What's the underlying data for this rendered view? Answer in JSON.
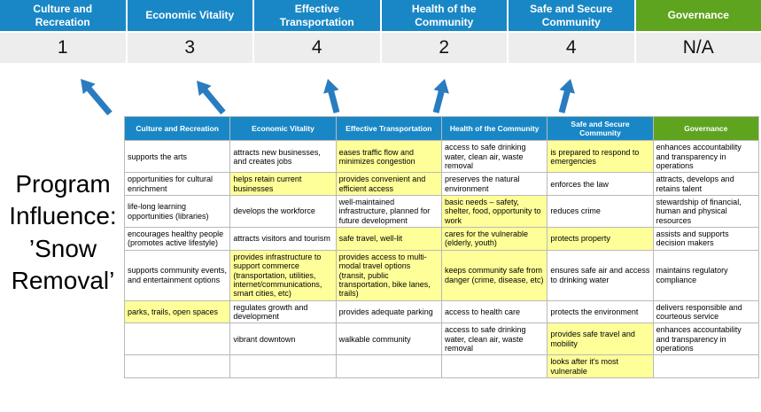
{
  "title": {
    "text": "Program\nInfluence:\n’Snow\nRemoval’"
  },
  "colors": {
    "pillar_blue": "#1987c6",
    "governance_green": "#5fa41f",
    "highlight_yellow": "#ffff99",
    "arrow_blue": "#2a7cc0",
    "score_band_gray": "#ededed"
  },
  "pillars": [
    {
      "label": "Culture and Recreation",
      "score": "1",
      "theme": "blue"
    },
    {
      "label": "Economic Vitality",
      "score": "3",
      "theme": "blue"
    },
    {
      "label": "Effective Transportation",
      "score": "4",
      "theme": "blue"
    },
    {
      "label": "Health of the Community",
      "score": "2",
      "theme": "blue"
    },
    {
      "label": "Safe and Secure Community",
      "score": "4",
      "theme": "blue"
    },
    {
      "label": "Governance",
      "score": "N/A",
      "theme": "green"
    }
  ],
  "matrix": {
    "rows": [
      [
        {
          "text": "supports the arts",
          "hl": false
        },
        {
          "text": "attracts new businesses, and creates jobs",
          "hl": false
        },
        {
          "text": "eases traffic flow and minimizes congestion",
          "hl": true
        },
        {
          "text": "access to safe drinking water, clean air, waste removal",
          "hl": false
        },
        {
          "text": "is prepared to respond to emergencies",
          "hl": true
        },
        {
          "text": "enhances accountability and transparency in operations",
          "hl": false
        }
      ],
      [
        {
          "text": "opportunities for cultural enrichment",
          "hl": false
        },
        {
          "text": "helps retain current businesses",
          "hl": true
        },
        {
          "text": "provides convenient and efficient access",
          "hl": true
        },
        {
          "text": "preserves the natural environment",
          "hl": false
        },
        {
          "text": "enforces the law",
          "hl": false
        },
        {
          "text": "attracts, develops and retains talent",
          "hl": false
        }
      ],
      [
        {
          "text": "life-long learning opportunities (libraries)",
          "hl": false
        },
        {
          "text": "develops the workforce",
          "hl": false
        },
        {
          "text": "well-maintained infrastructure, planned for future development",
          "hl": false
        },
        {
          "text": "basic needs – safety, shelter, food, opportunity to work",
          "hl": true
        },
        {
          "text": "reduces crime",
          "hl": false
        },
        {
          "text": "stewardship of financial, human and physical resources",
          "hl": false
        }
      ],
      [
        {
          "text": "encourages healthy people (promotes active lifestyle)",
          "hl": false
        },
        {
          "text": "attracts visitors and tourism",
          "hl": false
        },
        {
          "text": "safe travel, well-lit",
          "hl": true
        },
        {
          "text": "cares for the vulnerable (elderly, youth)",
          "hl": true
        },
        {
          "text": "protects property",
          "hl": true
        },
        {
          "text": "assists and supports decision makers",
          "hl": false
        }
      ],
      [
        {
          "text": "supports community events, and entertainment options",
          "hl": false
        },
        {
          "text": "provides infrastructure to support commerce (transportation, utilities, internet/communications, smart cities, etc)",
          "hl": true
        },
        {
          "text": "provides access to multi-modal travel options (transit, public transportation, bike lanes, trails)",
          "hl": true
        },
        {
          "text": "keeps community safe from danger (crime, disease, etc)",
          "hl": true
        },
        {
          "text": "ensures safe air and access to drinking water",
          "hl": false
        },
        {
          "text": "maintains regulatory compliance",
          "hl": false
        }
      ],
      [
        {
          "text": "parks, trails, open spaces",
          "hl": true
        },
        {
          "text": "regulates growth and development",
          "hl": false
        },
        {
          "text": "provides adequate parking",
          "hl": false
        },
        {
          "text": "access to health care",
          "hl": false
        },
        {
          "text": "protects the environment",
          "hl": false
        },
        {
          "text": "delivers responsible and courteous service",
          "hl": false
        }
      ],
      [
        {
          "text": "",
          "hl": false
        },
        {
          "text": "vibrant downtown",
          "hl": false
        },
        {
          "text": "walkable community",
          "hl": false
        },
        {
          "text": "access to safe drinking water, clean air, waste removal",
          "hl": false
        },
        {
          "text": "provides safe travel and mobility",
          "hl": true
        },
        {
          "text": "enhances accountability and transparency in operations",
          "hl": false
        }
      ],
      [
        {
          "text": "",
          "hl": false
        },
        {
          "text": "",
          "hl": false
        },
        {
          "text": "",
          "hl": false
        },
        {
          "text": "",
          "hl": false
        },
        {
          "text": "looks after it's most vulnerable",
          "hl": true
        },
        {
          "text": "",
          "hl": false
        }
      ]
    ]
  }
}
